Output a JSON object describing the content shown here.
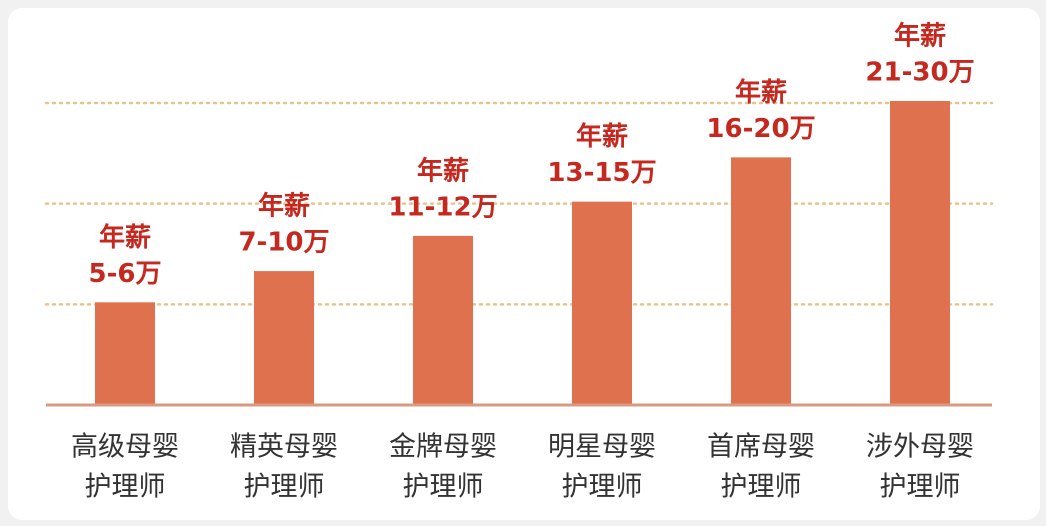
{
  "chart_data": {
    "type": "bar",
    "categories": [
      [
        "高级母婴",
        "护理师"
      ],
      [
        "精英母婴",
        "护理师"
      ],
      [
        "金牌母婴",
        "护理师"
      ],
      [
        "明星母婴",
        "护理师"
      ],
      [
        "首席母婴",
        "护理师"
      ],
      [
        "涉外母婴",
        "护理师"
      ]
    ],
    "values": [
      1.02,
      1.33,
      1.68,
      2.02,
      2.46,
      3.02
    ],
    "bar_labels": [
      [
        "年薪",
        "5-6万"
      ],
      [
        "年薪",
        "7-10万"
      ],
      [
        "年薪",
        "11-12万"
      ],
      [
        "年薪",
        "13-15万"
      ],
      [
        "年薪",
        "16-20万"
      ],
      [
        "年薪",
        "21-30万"
      ]
    ],
    "color": "#e0714f",
    "ylim": [
      0,
      3
    ],
    "grid_levels": [
      1,
      2,
      3
    ],
    "grid": true
  }
}
